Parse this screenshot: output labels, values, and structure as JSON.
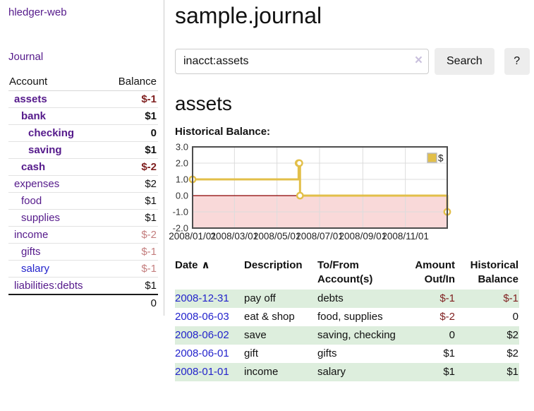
{
  "sidebar": {
    "brand": "hledger-web",
    "nav": {
      "journal": "Journal"
    },
    "accounts_table": {
      "col_account": "Account",
      "col_balance": "Balance",
      "rows": [
        {
          "name": "assets",
          "balance": "$-1",
          "indent": 1,
          "in_query": true,
          "balance_tone": "neg-strong",
          "link_tone": "purple"
        },
        {
          "name": "bank",
          "balance": "$1",
          "indent": 2,
          "in_query": true,
          "balance_tone": "pos",
          "link_tone": "purple"
        },
        {
          "name": "checking",
          "balance": "0",
          "indent": 3,
          "in_query": true,
          "balance_tone": "pos",
          "link_tone": "purple"
        },
        {
          "name": "saving",
          "balance": "$1",
          "indent": 3,
          "in_query": true,
          "balance_tone": "pos",
          "link_tone": "purple"
        },
        {
          "name": "cash",
          "balance": "$-2",
          "indent": 2,
          "in_query": true,
          "balance_tone": "neg-strong",
          "link_tone": "purple"
        },
        {
          "name": "expenses",
          "balance": "$2",
          "indent": 1,
          "in_query": false,
          "balance_tone": "pos",
          "link_tone": "purple"
        },
        {
          "name": "food",
          "balance": "$1",
          "indent": 2,
          "in_query": false,
          "balance_tone": "pos",
          "link_tone": "purple"
        },
        {
          "name": "supplies",
          "balance": "$1",
          "indent": 2,
          "in_query": false,
          "balance_tone": "pos",
          "link_tone": "purple"
        },
        {
          "name": "income",
          "balance": "$-2",
          "indent": 1,
          "in_query": false,
          "balance_tone": "neg-soft",
          "link_tone": "purple"
        },
        {
          "name": "gifts",
          "balance": "$-1",
          "indent": 2,
          "in_query": false,
          "balance_tone": "neg-soft",
          "link_tone": "purple"
        },
        {
          "name": "salary",
          "balance": "$-1",
          "indent": 2,
          "in_query": false,
          "balance_tone": "neg-soft",
          "link_tone": "blue"
        },
        {
          "name": "liabilities:debts",
          "balance": "$1",
          "indent": 1,
          "in_query": false,
          "balance_tone": "pos",
          "link_tone": "purple"
        }
      ],
      "total": "0"
    }
  },
  "main": {
    "title": "sample.journal",
    "search": {
      "value": "inacct:assets",
      "clear_icon": "×",
      "search_button": "Search",
      "help_button": "?"
    },
    "account_heading": "assets",
    "chart_heading": "Historical Balance:"
  },
  "chart_data": {
    "type": "line",
    "step": true,
    "title": "Historical Balance:",
    "series": [
      {
        "name": "$",
        "points": [
          {
            "date": "2008-01-01",
            "value": 1
          },
          {
            "date": "2008-06-01",
            "value": 2
          },
          {
            "date": "2008-06-02",
            "value": 2
          },
          {
            "date": "2008-06-03",
            "value": 0
          },
          {
            "date": "2008-12-31",
            "value": -1
          }
        ]
      }
    ],
    "x_range": [
      "2008-01-01",
      "2008-12-31"
    ],
    "x_ticks": [
      {
        "date": "2008-01-01",
        "label": "2008/01/01"
      },
      {
        "date": "2008-03-01",
        "label": "2008/03/01"
      },
      {
        "date": "2008-05-01",
        "label": "2008/05/01"
      },
      {
        "date": "2008-07-01",
        "label": "2008/07/01"
      },
      {
        "date": "2008-09-01",
        "label": "2008/09/01"
      },
      {
        "date": "2008-11-01",
        "label": "2008/11/01"
      }
    ],
    "y_ticks": [
      "3.0",
      "2.0",
      "1.0",
      "0.0",
      "-1.0",
      "-2.0"
    ],
    "ylim": [
      -2,
      3
    ],
    "grid": true,
    "legend": {
      "position": "top-right",
      "entries": [
        "$"
      ]
    },
    "line_color": "#e2bf49",
    "marker_fill": "#ffffff",
    "negative_region_color": "#f9d9d9",
    "zero_line_color": "#8b0000",
    "grid_color": "#dcdcdc",
    "border_color": "#4d4d4d"
  },
  "register": {
    "headers": {
      "date": "Date",
      "date_sort_icon": "∧",
      "description": "Description",
      "accounts": "To/From Account(s)",
      "amount": "Amount Out/In",
      "balance": "Historical Balance"
    },
    "rows": [
      {
        "date": "2008-12-31",
        "description": "pay off",
        "accounts": "debts",
        "amount": "$-1",
        "amount_tone": "neg",
        "balance": "$-1",
        "balance_tone": "neg",
        "stripe": true
      },
      {
        "date": "2008-06-03",
        "description": "eat & shop",
        "accounts": "food, supplies",
        "amount": "$-2",
        "amount_tone": "neg",
        "balance": "0",
        "balance_tone": "pos",
        "stripe": false
      },
      {
        "date": "2008-06-02",
        "description": "save",
        "accounts": "saving, checking",
        "amount": "0",
        "amount_tone": "pos",
        "balance": "$2",
        "balance_tone": "pos",
        "stripe": true
      },
      {
        "date": "2008-06-01",
        "description": "gift",
        "accounts": "gifts",
        "amount": "$1",
        "amount_tone": "pos",
        "balance": "$2",
        "balance_tone": "pos",
        "stripe": false
      },
      {
        "date": "2008-01-01",
        "description": "income",
        "accounts": "salary",
        "amount": "$1",
        "amount_tone": "pos",
        "balance": "$1",
        "balance_tone": "pos",
        "stripe": true
      }
    ]
  },
  "colors": {
    "link_purple": "#551a8b",
    "link_blue": "#2323cc",
    "negative_strong": "#7f1f1f",
    "negative_soft": "#c47e7e",
    "row_stripe_green": "#ddeedd",
    "button_gray": "#ededed",
    "sidebar_divider": "#cccccc"
  }
}
